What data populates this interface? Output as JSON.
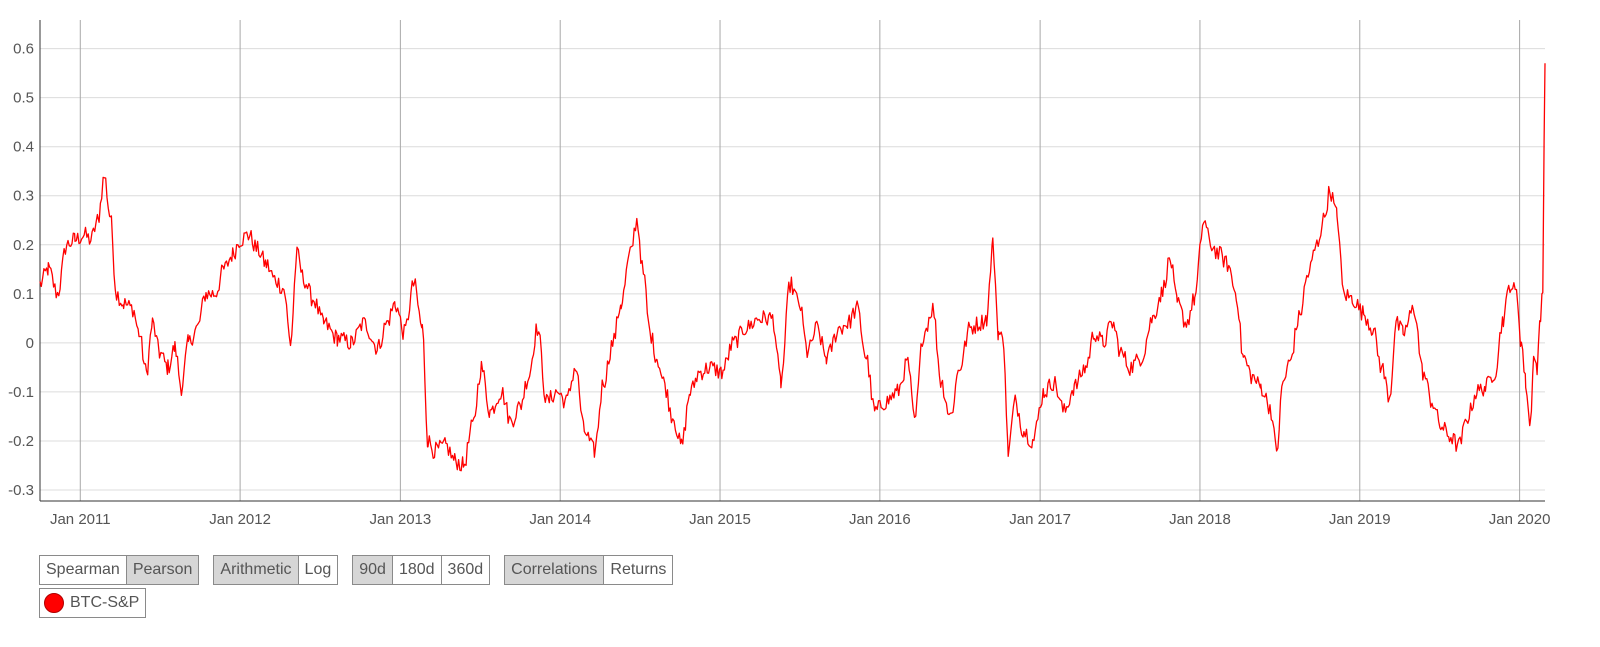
{
  "chart_data": {
    "type": "line",
    "xlabel": "",
    "ylabel": "",
    "ylim": [
      -0.33,
      0.66
    ],
    "yticks": [
      0.6,
      0.5,
      0.4,
      0.3,
      0.2,
      0.1,
      0,
      -0.1,
      -0.2,
      -0.3
    ],
    "ytick_labels": [
      "0.6",
      "0.5",
      "0.4",
      "0.3",
      "0.2",
      "0.1",
      "0",
      "-0.1",
      "-0.2",
      "-0.3"
    ],
    "x_start": "2010-10-01",
    "x_end": "2020-02-28",
    "xticks": [
      "2011-01-01",
      "2012-01-01",
      "2013-01-01",
      "2014-01-01",
      "2015-01-01",
      "2016-01-01",
      "2017-01-01",
      "2018-01-01",
      "2019-01-01",
      "2020-01-01"
    ],
    "xtick_labels": [
      "Jan 2011",
      "Jan 2012",
      "Jan 2013",
      "Jan 2014",
      "Jan 2015",
      "Jan 2016",
      "Jan 2017",
      "Jan 2018",
      "Jan 2019",
      "Jan 2020"
    ],
    "grid": true,
    "legend_position": "bottom-left",
    "series": [
      {
        "name": "BTC-S&P",
        "color": "#ff0000",
        "points": [
          [
            "2010-10-01",
            0.12
          ],
          [
            "2010-10-20",
            0.15
          ],
          [
            "2010-11-10",
            0.1
          ],
          [
            "2010-12-01",
            0.2
          ],
          [
            "2010-12-20",
            0.21
          ],
          [
            "2011-01-10",
            0.22
          ],
          [
            "2011-01-25",
            0.21
          ],
          [
            "2011-02-10",
            0.25
          ],
          [
            "2011-02-25",
            0.34
          ],
          [
            "2011-03-10",
            0.26
          ],
          [
            "2011-03-25",
            0.1
          ],
          [
            "2011-04-10",
            0.08
          ],
          [
            "2011-05-01",
            0.07
          ],
          [
            "2011-05-15",
            0.02
          ],
          [
            "2011-06-01",
            -0.06
          ],
          [
            "2011-06-15",
            0.04
          ],
          [
            "2011-07-01",
            -0.02
          ],
          [
            "2011-07-20",
            -0.05
          ],
          [
            "2011-08-05",
            -0.01
          ],
          [
            "2011-08-20",
            -0.09
          ],
          [
            "2011-09-05",
            0.0
          ],
          [
            "2011-09-25",
            0.03
          ],
          [
            "2011-10-15",
            0.1
          ],
          [
            "2011-11-05",
            0.1
          ],
          [
            "2011-11-25",
            0.15
          ],
          [
            "2011-12-15",
            0.18
          ],
          [
            "2012-01-01",
            0.21
          ],
          [
            "2012-01-20",
            0.22
          ],
          [
            "2012-02-10",
            0.19
          ],
          [
            "2012-03-01",
            0.16
          ],
          [
            "2012-03-20",
            0.13
          ],
          [
            "2012-04-10",
            0.11
          ],
          [
            "2012-04-25",
            0.0
          ],
          [
            "2012-05-10",
            0.18
          ],
          [
            "2012-05-25",
            0.13
          ],
          [
            "2012-06-15",
            0.09
          ],
          [
            "2012-07-10",
            0.04
          ],
          [
            "2012-08-10",
            0.01
          ],
          [
            "2012-09-10",
            0.0
          ],
          [
            "2012-10-10",
            0.04
          ],
          [
            "2012-11-10",
            -0.01
          ],
          [
            "2012-12-01",
            0.04
          ],
          [
            "2012-12-20",
            0.08
          ],
          [
            "2013-01-10",
            0.02
          ],
          [
            "2013-02-01",
            0.12
          ],
          [
            "2013-02-20",
            0.03
          ],
          [
            "2013-03-05",
            -0.2
          ],
          [
            "2013-03-20",
            -0.22
          ],
          [
            "2013-04-15",
            -0.21
          ],
          [
            "2013-05-05",
            -0.24
          ],
          [
            "2013-05-25",
            -0.25
          ],
          [
            "2013-06-15",
            -0.17
          ],
          [
            "2013-07-05",
            -0.05
          ],
          [
            "2013-07-25",
            -0.14
          ],
          [
            "2013-08-20",
            -0.1
          ],
          [
            "2013-09-10",
            -0.16
          ],
          [
            "2013-10-01",
            -0.13
          ],
          [
            "2013-10-20",
            -0.07
          ],
          [
            "2013-11-10",
            0.03
          ],
          [
            "2013-12-01",
            -0.12
          ],
          [
            "2013-12-25",
            -0.1
          ],
          [
            "2014-01-15",
            -0.12
          ],
          [
            "2014-02-05",
            -0.05
          ],
          [
            "2014-02-25",
            -0.18
          ],
          [
            "2014-03-20",
            -0.22
          ],
          [
            "2014-04-10",
            -0.08
          ],
          [
            "2014-05-01",
            0.0
          ],
          [
            "2014-05-20",
            0.08
          ],
          [
            "2014-06-10",
            0.18
          ],
          [
            "2014-06-25",
            0.25
          ],
          [
            "2014-07-10",
            0.14
          ],
          [
            "2014-07-25",
            0.02
          ],
          [
            "2014-08-10",
            -0.03
          ],
          [
            "2014-08-25",
            -0.08
          ],
          [
            "2014-09-15",
            -0.15
          ],
          [
            "2014-10-05",
            -0.21
          ],
          [
            "2014-10-25",
            -0.1
          ],
          [
            "2014-11-15",
            -0.06
          ],
          [
            "2014-12-10",
            -0.05
          ],
          [
            "2015-01-05",
            -0.06
          ],
          [
            "2015-02-01",
            0.0
          ],
          [
            "2015-03-01",
            0.03
          ],
          [
            "2015-04-01",
            0.05
          ],
          [
            "2015-05-01",
            0.05
          ],
          [
            "2015-05-20",
            -0.08
          ],
          [
            "2015-06-10",
            0.12
          ],
          [
            "2015-07-01",
            0.08
          ],
          [
            "2015-07-20",
            -0.02
          ],
          [
            "2015-08-10",
            0.03
          ],
          [
            "2015-09-01",
            -0.03
          ],
          [
            "2015-10-01",
            0.03
          ],
          [
            "2015-10-20",
            0.04
          ],
          [
            "2015-11-10",
            0.07
          ],
          [
            "2015-12-01",
            -0.03
          ],
          [
            "2015-12-20",
            -0.14
          ],
          [
            "2016-01-15",
            -0.12
          ],
          [
            "2016-02-10",
            -0.1
          ],
          [
            "2016-03-05",
            -0.04
          ],
          [
            "2016-03-20",
            -0.16
          ],
          [
            "2016-04-10",
            0.02
          ],
          [
            "2016-05-01",
            0.07
          ],
          [
            "2016-05-20",
            -0.08
          ],
          [
            "2016-06-10",
            -0.15
          ],
          [
            "2016-07-01",
            -0.05
          ],
          [
            "2016-07-25",
            0.03
          ],
          [
            "2016-08-15",
            0.04
          ],
          [
            "2016-09-01",
            0.05
          ],
          [
            "2016-09-15",
            0.2
          ],
          [
            "2016-09-28",
            0.02
          ],
          [
            "2016-10-10",
            0.0
          ],
          [
            "2016-10-20",
            -0.22
          ],
          [
            "2016-11-05",
            -0.12
          ],
          [
            "2016-11-25",
            -0.18
          ],
          [
            "2016-12-15",
            -0.2
          ],
          [
            "2017-01-10",
            -0.1
          ],
          [
            "2017-02-01",
            -0.08
          ],
          [
            "2017-02-25",
            -0.14
          ],
          [
            "2017-03-20",
            -0.09
          ],
          [
            "2017-04-15",
            -0.05
          ],
          [
            "2017-05-05",
            0.02
          ],
          [
            "2017-05-25",
            0.0
          ],
          [
            "2017-06-15",
            0.04
          ],
          [
            "2017-07-05",
            -0.02
          ],
          [
            "2017-07-25",
            -0.05
          ],
          [
            "2017-08-20",
            -0.03
          ],
          [
            "2017-09-15",
            0.05
          ],
          [
            "2017-10-05",
            0.1
          ],
          [
            "2017-10-25",
            0.17
          ],
          [
            "2017-11-10",
            0.08
          ],
          [
            "2017-12-01",
            0.04
          ],
          [
            "2017-12-20",
            0.09
          ],
          [
            "2018-01-10",
            0.25
          ],
          [
            "2018-01-25",
            0.2
          ],
          [
            "2018-02-15",
            0.18
          ],
          [
            "2018-03-05",
            0.16
          ],
          [
            "2018-03-25",
            0.1
          ],
          [
            "2018-04-10",
            -0.03
          ],
          [
            "2018-05-01",
            -0.07
          ],
          [
            "2018-05-20",
            -0.09
          ],
          [
            "2018-06-10",
            -0.13
          ],
          [
            "2018-06-25",
            -0.22
          ],
          [
            "2018-07-10",
            -0.08
          ],
          [
            "2018-07-25",
            -0.04
          ],
          [
            "2018-08-15",
            0.05
          ],
          [
            "2018-09-05",
            0.14
          ],
          [
            "2018-09-25",
            0.2
          ],
          [
            "2018-10-10",
            0.25
          ],
          [
            "2018-10-25",
            0.31
          ],
          [
            "2018-11-10",
            0.26
          ],
          [
            "2018-11-25",
            0.1
          ],
          [
            "2018-12-15",
            0.09
          ],
          [
            "2019-01-10",
            0.06
          ],
          [
            "2019-01-30",
            0.03
          ],
          [
            "2019-02-20",
            -0.05
          ],
          [
            "2019-03-10",
            -0.11
          ],
          [
            "2019-03-25",
            0.04
          ],
          [
            "2019-04-10",
            0.02
          ],
          [
            "2019-05-05",
            0.07
          ],
          [
            "2019-05-25",
            -0.06
          ],
          [
            "2019-06-15",
            -0.12
          ],
          [
            "2019-07-05",
            -0.17
          ],
          [
            "2019-07-25",
            -0.19
          ],
          [
            "2019-08-15",
            -0.21
          ],
          [
            "2019-09-05",
            -0.15
          ],
          [
            "2019-09-25",
            -0.1
          ],
          [
            "2019-10-15",
            -0.09
          ],
          [
            "2019-11-05",
            -0.06
          ],
          [
            "2019-11-25",
            0.05
          ],
          [
            "2019-12-10",
            0.12
          ],
          [
            "2019-12-25",
            0.1
          ],
          [
            "2020-01-05",
            0.0
          ],
          [
            "2020-01-15",
            -0.08
          ],
          [
            "2020-01-25",
            -0.17
          ],
          [
            "2020-02-02",
            -0.03
          ],
          [
            "2020-02-10",
            -0.05
          ],
          [
            "2020-02-18",
            0.05
          ],
          [
            "2020-02-23",
            0.12
          ],
          [
            "2020-02-28",
            0.57
          ]
        ]
      }
    ]
  },
  "controls": {
    "groups": [
      {
        "buttons": [
          {
            "label": "Spearman",
            "active": false
          },
          {
            "label": "Pearson",
            "active": true
          }
        ]
      },
      {
        "buttons": [
          {
            "label": "Arithmetic",
            "active": true
          },
          {
            "label": "Log",
            "active": false
          }
        ]
      },
      {
        "buttons": [
          {
            "label": "90d",
            "active": true
          },
          {
            "label": "180d",
            "active": false
          },
          {
            "label": "360d",
            "active": false
          }
        ]
      },
      {
        "buttons": [
          {
            "label": "Correlations",
            "active": true
          },
          {
            "label": "Returns",
            "active": false
          }
        ]
      }
    ]
  },
  "legend": {
    "label": "BTC-S&P",
    "color": "#ff0000"
  }
}
